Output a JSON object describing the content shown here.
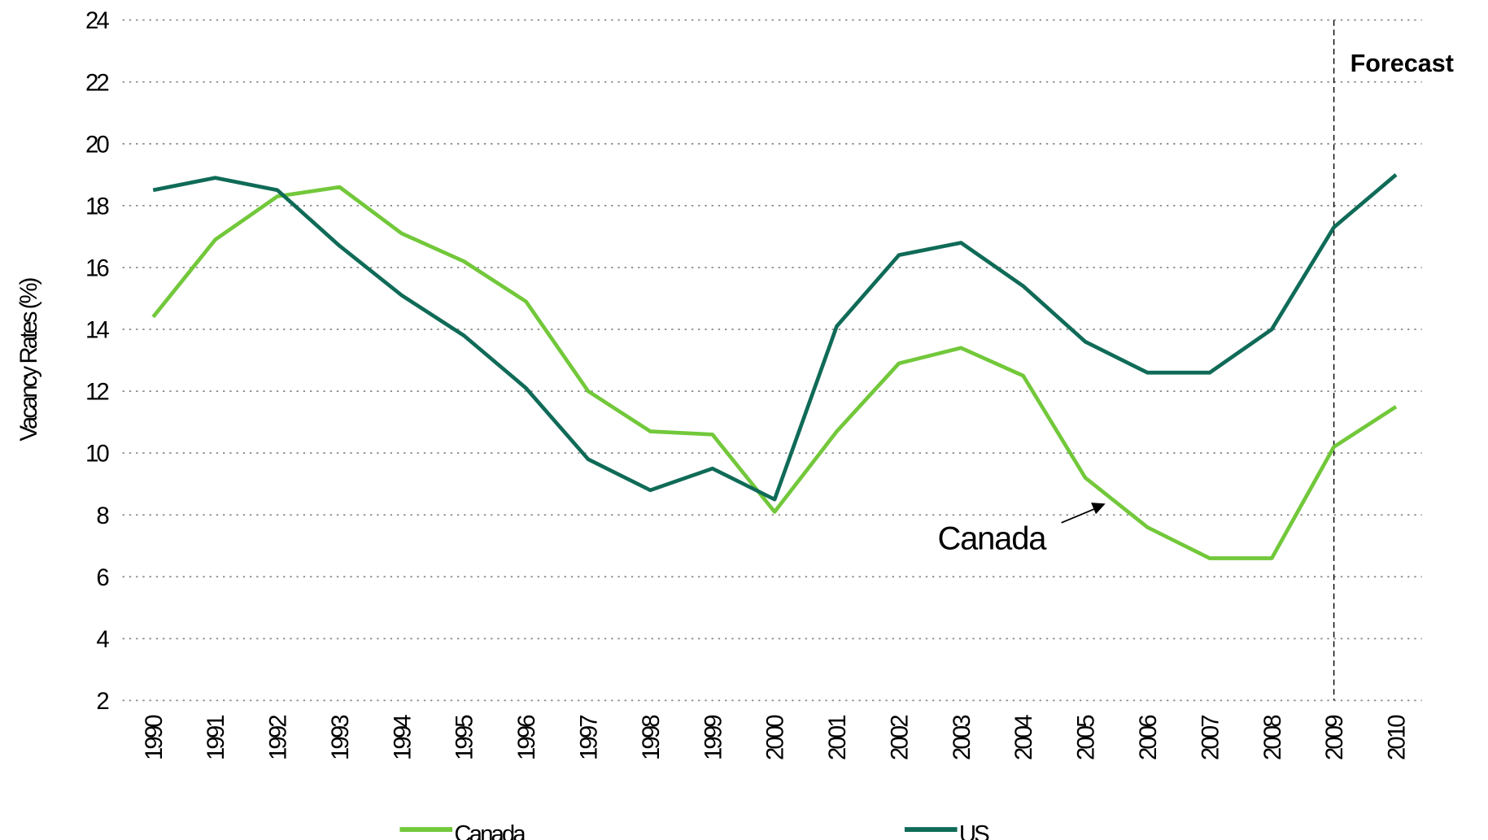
{
  "chart_data": {
    "type": "line",
    "y_label": "Vacancy Rates (%)",
    "categories": [
      "1990",
      "1991",
      "1992",
      "1993",
      "1994",
      "1995",
      "1996",
      "1997",
      "1998",
      "1999",
      "2000",
      "2001",
      "2002",
      "2003",
      "2004",
      "2005",
      "2006",
      "2007",
      "2008",
      "2009",
      "2010"
    ],
    "series": [
      {
        "name": "Canada",
        "color": "#72c83a",
        "values": [
          14.4,
          16.9,
          18.3,
          18.6,
          17.1,
          16.2,
          14.9,
          12.0,
          10.7,
          10.6,
          8.1,
          10.7,
          12.9,
          13.4,
          12.5,
          9.2,
          7.6,
          6.6,
          6.6,
          10.2,
          11.5
        ]
      },
      {
        "name": "US",
        "color": "#0f6b57",
        "values": [
          18.5,
          18.9,
          18.5,
          16.7,
          15.1,
          13.8,
          12.1,
          9.8,
          8.8,
          9.5,
          8.5,
          14.1,
          16.4,
          16.8,
          15.4,
          13.6,
          12.6,
          12.6,
          14.0,
          17.3,
          19.0
        ]
      }
    ],
    "ylim": [
      2,
      24
    ],
    "yticks": [
      2,
      4,
      6,
      8,
      10,
      12,
      14,
      16,
      18,
      20,
      22,
      24
    ],
    "grid": true,
    "annotations": [
      {
        "text": "Forecast",
        "x": "2009"
      },
      {
        "text": "Canada"
      }
    ]
  }
}
